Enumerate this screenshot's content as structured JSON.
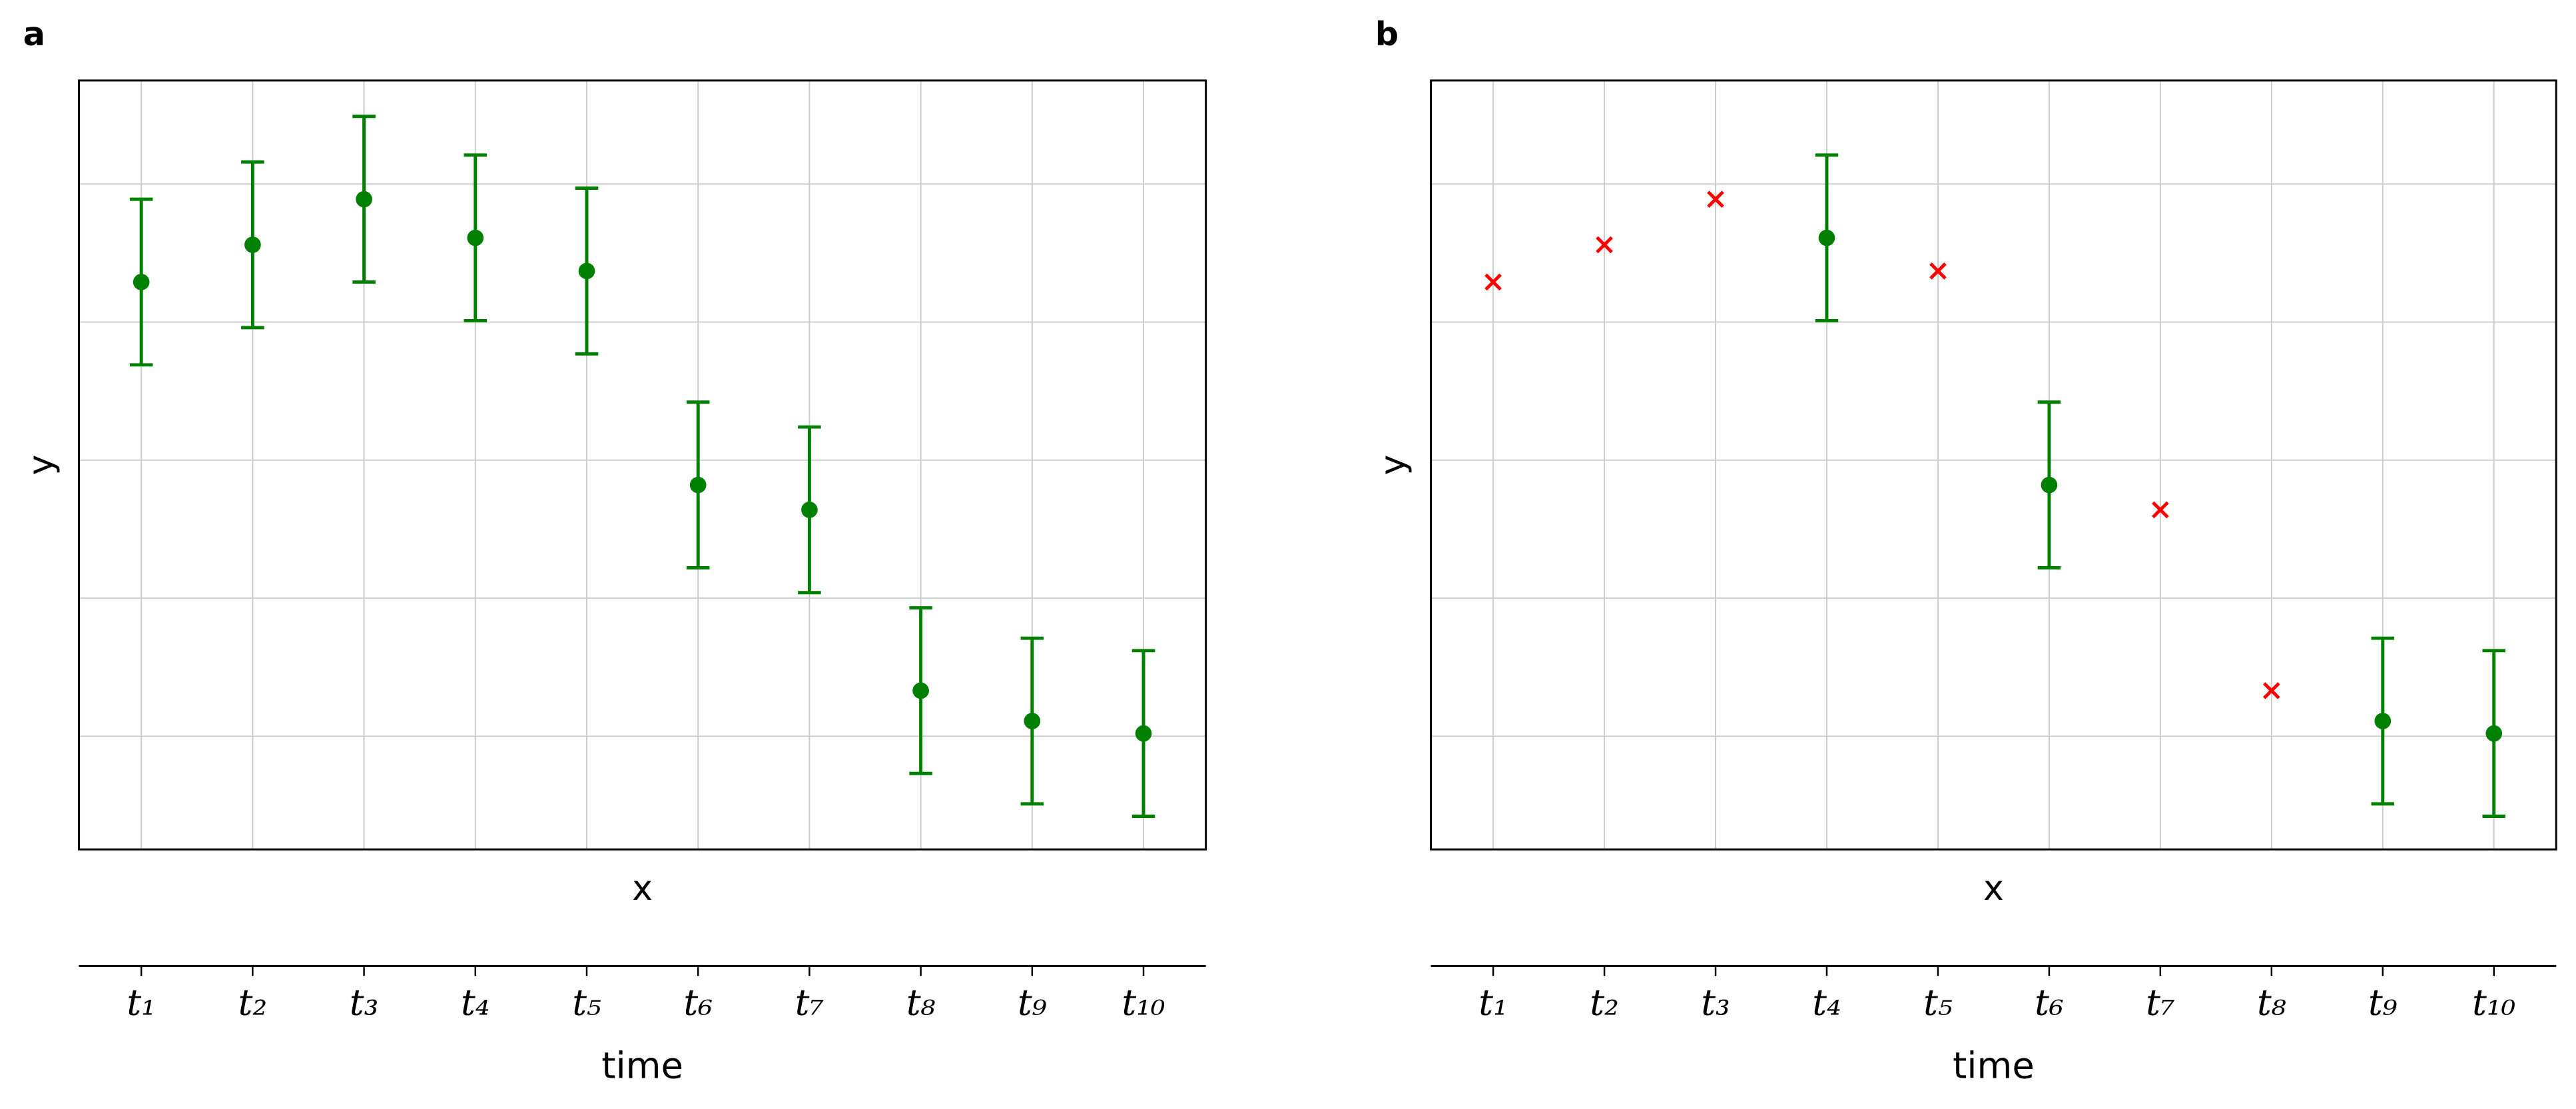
{
  "chart_data": [
    {
      "type": "errorbar",
      "panel_label": "a",
      "xlabel": "x",
      "ylabel": "y",
      "x": [
        1,
        2,
        3,
        4,
        5,
        6,
        7,
        8,
        9,
        10
      ],
      "xlim": [
        0.44,
        10.56
      ],
      "xticks": [
        1,
        2,
        3,
        4,
        5,
        6,
        7,
        8,
        9,
        10
      ],
      "ylim": [
        0.18,
        5.75
      ],
      "yticks": [
        1,
        2,
        3,
        4,
        5
      ],
      "grid": true,
      "series": [
        {
          "color": "#008000",
          "marker": "o",
          "values": [
            4.29,
            4.56,
            4.89,
            4.61,
            4.37,
            2.82,
            2.64,
            1.33,
            1.11,
            1.02
          ],
          "errors": [
            0.6,
            0.6,
            0.6,
            0.6,
            0.6,
            0.6,
            0.6,
            0.6,
            0.6,
            0.6
          ]
        }
      ],
      "secondary_xaxis": {
        "label": "time",
        "categories": [
          "t₁",
          "t₂",
          "t₃",
          "t₄",
          "t₅",
          "t₆",
          "t₇",
          "t₈",
          "t₉",
          "t₁₀"
        ]
      }
    },
    {
      "type": "errorbar",
      "panel_label": "b",
      "xlabel": "x",
      "ylabel": "y",
      "x": [
        1,
        2,
        3,
        4,
        5,
        6,
        7,
        8,
        9,
        10
      ],
      "xlim": [
        0.44,
        10.56
      ],
      "xticks": [
        1,
        2,
        3,
        4,
        5,
        6,
        7,
        8,
        9,
        10
      ],
      "ylim": [
        0.18,
        5.75
      ],
      "yticks": [
        1,
        2,
        3,
        4,
        5
      ],
      "grid": true,
      "series": [
        {
          "color": "#008000",
          "marker": "o",
          "values": [
            null,
            null,
            null,
            4.61,
            null,
            2.82,
            null,
            null,
            1.11,
            1.02
          ],
          "errors": [
            null,
            null,
            null,
            0.6,
            null,
            0.6,
            null,
            null,
            0.6,
            0.6
          ]
        },
        {
          "color": "#ff0000",
          "marker": "x",
          "values": [
            4.29,
            4.56,
            4.89,
            null,
            4.37,
            null,
            2.64,
            1.33,
            null,
            null
          ]
        }
      ],
      "secondary_xaxis": {
        "label": "time",
        "categories": [
          "t₁",
          "t₂",
          "t₃",
          "t₄",
          "t₅",
          "t₆",
          "t₇",
          "t₈",
          "t₉",
          "t₁₀"
        ]
      }
    }
  ]
}
